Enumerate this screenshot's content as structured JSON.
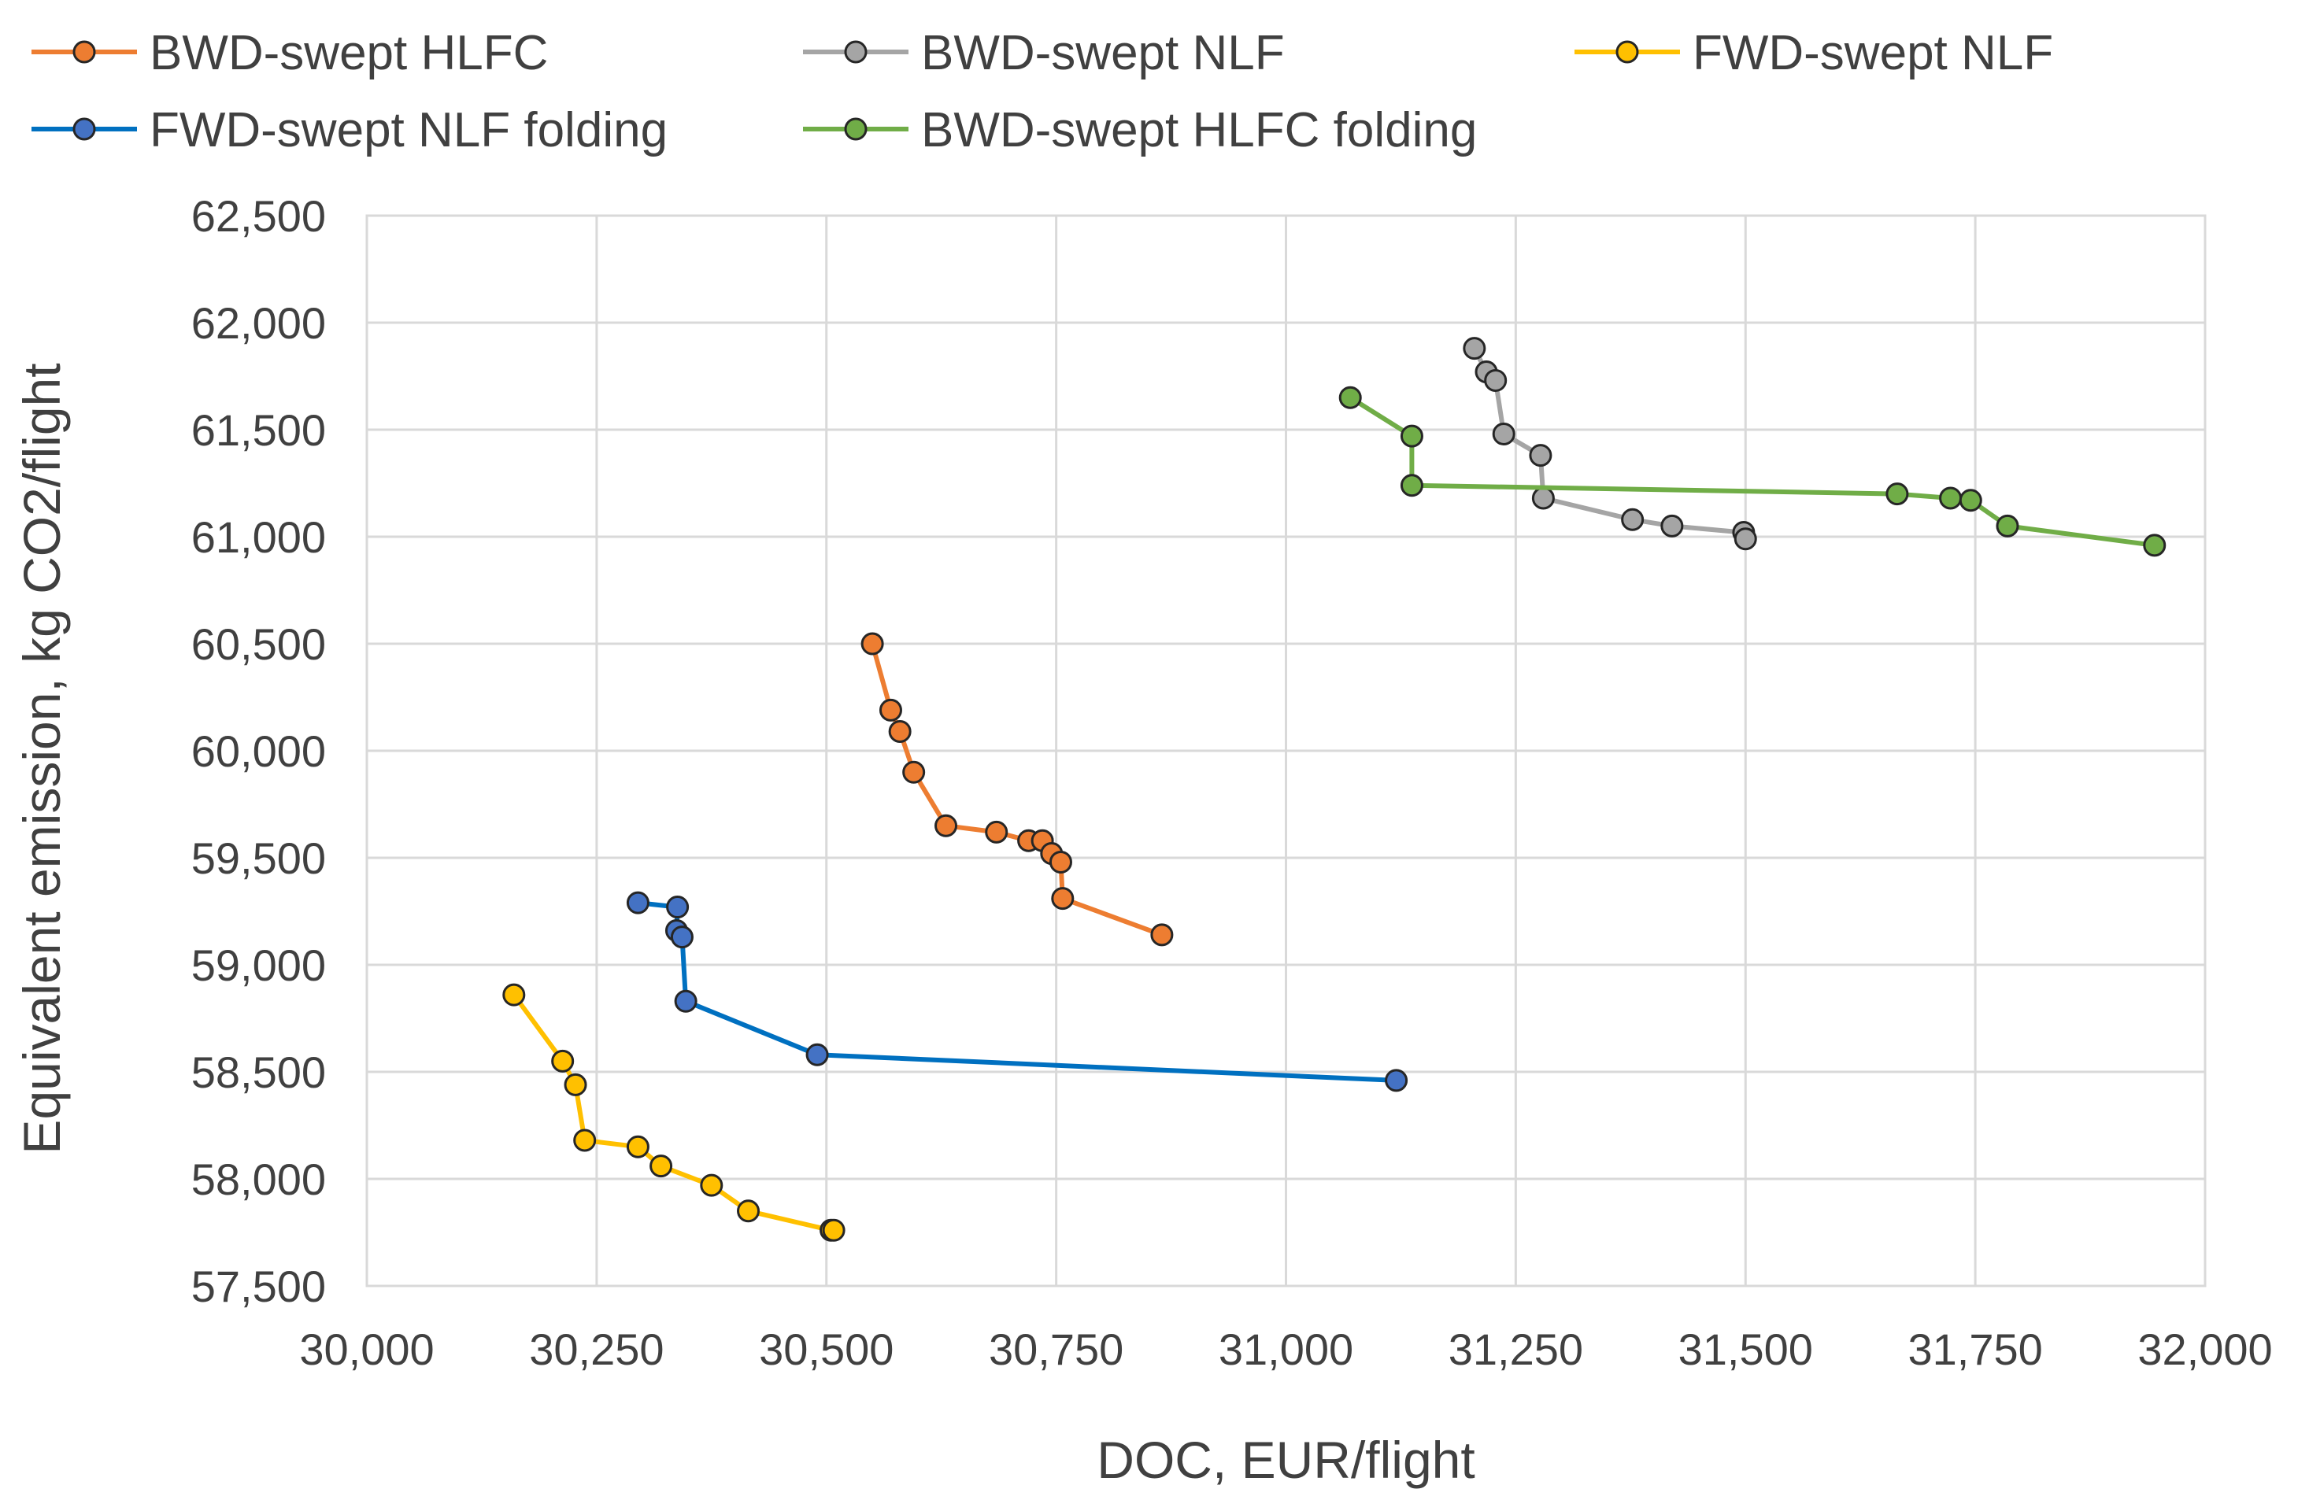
{
  "chart_data": {
    "type": "line",
    "xlabel": "DOC, EUR/flight",
    "ylabel": "Equivalent emission, kg CO2/flight",
    "xlim": [
      30000,
      32000
    ],
    "ylim": [
      57500,
      62500
    ],
    "x_ticks": [
      "30,000",
      "30,250",
      "30,500",
      "30,750",
      "31,000",
      "31,250",
      "31,500",
      "31,750",
      "32,000"
    ],
    "y_ticks": [
      "57,500",
      "58,000",
      "58,500",
      "59,000",
      "59,500",
      "60,000",
      "60,500",
      "61,000",
      "61,500",
      "62,000",
      "62,500"
    ],
    "grid": true,
    "legend_position": "top",
    "series": [
      {
        "name": "BWD-swept HLFC",
        "color": "#ED7D31",
        "points": [
          [
            30550,
            60500
          ],
          [
            30570,
            60190
          ],
          [
            30580,
            60090
          ],
          [
            30595,
            59900
          ],
          [
            30630,
            59650
          ],
          [
            30685,
            59620
          ],
          [
            30720,
            59580
          ],
          [
            30735,
            59580
          ],
          [
            30745,
            59520
          ],
          [
            30755,
            59480
          ],
          [
            30757,
            59310
          ],
          [
            30865,
            59140
          ]
        ]
      },
      {
        "name": "BWD-swept NLF",
        "color": "#A5A5A5",
        "points": [
          [
            31205,
            61880
          ],
          [
            31218,
            61770
          ],
          [
            31228,
            61730
          ],
          [
            31237,
            61480
          ],
          [
            31277,
            61380
          ],
          [
            31280,
            61180
          ],
          [
            31377,
            61080
          ],
          [
            31420,
            61050
          ],
          [
            31498,
            61020
          ],
          [
            31500,
            60990
          ]
        ]
      },
      {
        "name": "FWD-swept NLF",
        "color": "#FFC000",
        "points": [
          [
            30160,
            58860
          ],
          [
            30213,
            58550
          ],
          [
            30227,
            58440
          ],
          [
            30237,
            58180
          ],
          [
            30295,
            58150
          ],
          [
            30320,
            58060
          ],
          [
            30375,
            57970
          ],
          [
            30415,
            57850
          ],
          [
            30505,
            57760
          ],
          [
            30508,
            57760
          ]
        ]
      },
      {
        "name": "FWD-swept NLF folding",
        "color": "#4472C4",
        "line_color": "#0070C0",
        "points": [
          [
            30295,
            59290
          ],
          [
            30338,
            59270
          ],
          [
            30337,
            59160
          ],
          [
            30343,
            59130
          ],
          [
            30347,
            58830
          ],
          [
            30490,
            58580
          ],
          [
            31120,
            58460
          ]
        ]
      },
      {
        "name": "BWD-swept HLFC folding",
        "color": "#70AD47",
        "points": [
          [
            31070,
            61650
          ],
          [
            31137,
            61470
          ],
          [
            31137,
            61240
          ],
          [
            31665,
            61200
          ],
          [
            31723,
            61180
          ],
          [
            31745,
            61170
          ],
          [
            31785,
            61050
          ],
          [
            31945,
            60960
          ]
        ]
      }
    ]
  }
}
